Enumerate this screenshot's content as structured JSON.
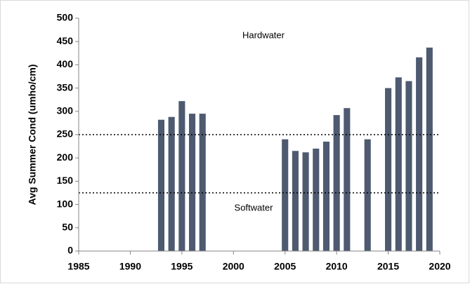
{
  "chart_data": {
    "type": "bar",
    "y_label": "Avg Summer Cond (umho/cm)",
    "annotations": [
      "Hardwater",
      "Softwater"
    ],
    "x": [
      1993,
      1994,
      1995,
      1996,
      1997,
      2005,
      2006,
      2007,
      2008,
      2009,
      2010,
      2011,
      2013,
      2015,
      2016,
      2017,
      2018,
      2019
    ],
    "values": [
      282,
      288,
      322,
      295,
      295,
      240,
      215,
      212,
      220,
      235,
      292,
      307,
      240,
      350,
      373,
      365,
      416,
      437
    ],
    "color": "#4d5a70",
    "reference_lines": [
      250,
      125
    ],
    "xlim": [
      1985,
      2020
    ],
    "xticks": [
      1985,
      1990,
      1995,
      2000,
      2005,
      2010,
      2015,
      2020
    ],
    "ylim": [
      0,
      500
    ],
    "yticks": [
      0,
      50,
      100,
      150,
      200,
      250,
      300,
      350,
      400,
      450,
      500
    ]
  }
}
